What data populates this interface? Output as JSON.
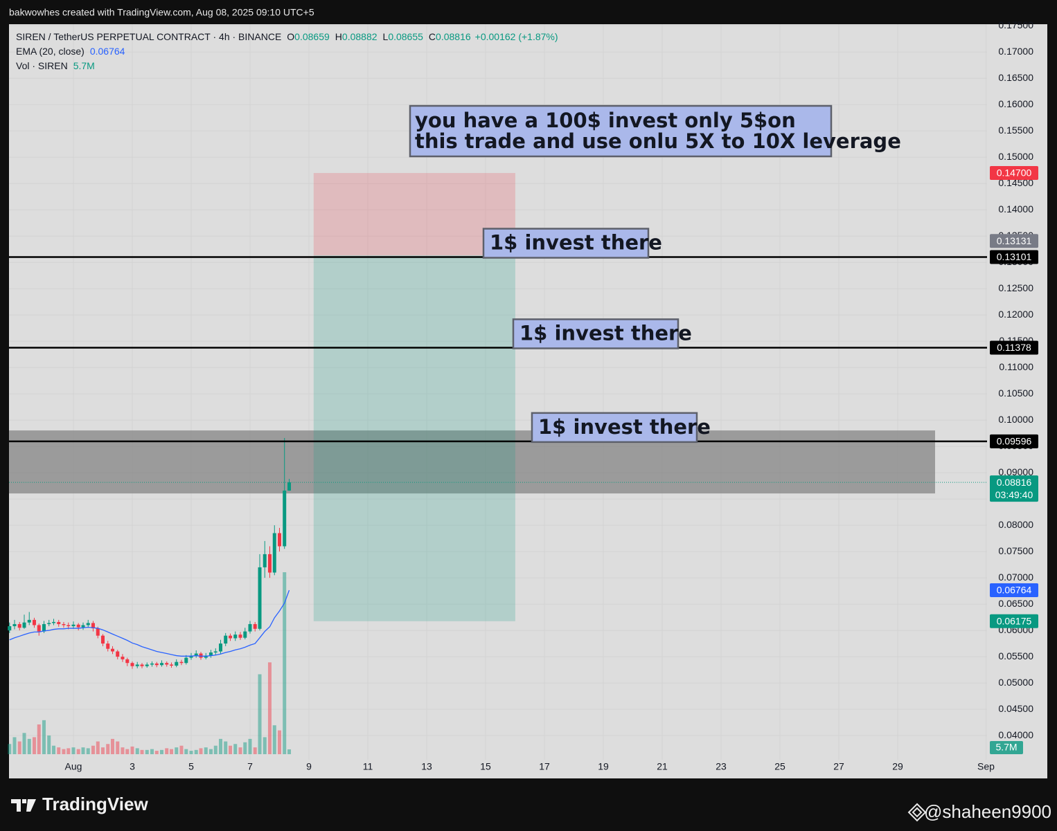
{
  "header": "bakwowhes created with TradingView.com, Aug 08, 2025 09:10 UTC+5",
  "chart_data": {
    "type": "candlestick",
    "symbol": "SIREN / TetherUS PERPETUAL CONTRACT · 4h · BINANCE",
    "legend": {
      "o_label": "O",
      "o": 0.08659,
      "h_label": "H",
      "h": 0.08882,
      "l_label": "L",
      "l": 0.08655,
      "c_label": "C",
      "c": 0.08816,
      "change": "+0.00162 (+1.87%)"
    },
    "up_color": "#089981",
    "down_color": "#f23645",
    "x": [
      -1.17,
      -1,
      -0.83,
      -0.67,
      -0.5,
      -0.33,
      -0.17,
      0,
      0.17,
      0.33,
      0.5,
      0.67,
      0.83,
      1,
      1.17,
      1.33,
      1.5,
      1.67,
      1.83,
      2,
      2.17,
      2.33,
      2.5,
      2.67,
      2.83,
      3,
      3.17,
      3.33,
      3.5,
      3.67,
      3.83,
      4,
      4.17,
      4.33,
      4.5,
      4.67,
      4.83,
      5,
      5.17,
      5.33,
      5.5,
      5.67,
      5.83,
      6,
      6.17,
      6.33,
      6.5,
      6.67,
      6.83,
      7,
      7.17,
      7.33,
      7.5,
      7.67,
      7.83,
      8,
      8.17,
      8.33
    ],
    "open": [
      0.06,
      0.0608,
      0.0612,
      0.0605,
      0.0615,
      0.062,
      0.061,
      0.0598,
      0.0612,
      0.0614,
      0.0616,
      0.0612,
      0.061,
      0.0608,
      0.0611,
      0.0606,
      0.061,
      0.0614,
      0.0604,
      0.059,
      0.0575,
      0.0565,
      0.056,
      0.055,
      0.0545,
      0.0538,
      0.0532,
      0.0535,
      0.0532,
      0.0535,
      0.0537,
      0.0534,
      0.0538,
      0.0535,
      0.0533,
      0.054,
      0.0538,
      0.0548,
      0.0552,
      0.0556,
      0.0548,
      0.0552,
      0.0558,
      0.056,
      0.0575,
      0.059,
      0.0585,
      0.0592,
      0.0586,
      0.0598,
      0.0612,
      0.0603,
      0.072,
      0.0745,
      0.071,
      0.0785,
      0.076,
      0.08659
    ],
    "high": [
      0.0615,
      0.062,
      0.0616,
      0.063,
      0.0635,
      0.0624,
      0.0613,
      0.0618,
      0.062,
      0.0622,
      0.062,
      0.0616,
      0.0615,
      0.0617,
      0.0614,
      0.0615,
      0.062,
      0.0618,
      0.0607,
      0.0593,
      0.058,
      0.057,
      0.0563,
      0.0555,
      0.0548,
      0.0541,
      0.054,
      0.0538,
      0.0539,
      0.0541,
      0.054,
      0.0543,
      0.0541,
      0.0539,
      0.0545,
      0.0544,
      0.0553,
      0.0557,
      0.0562,
      0.0559,
      0.0557,
      0.0563,
      0.0566,
      0.0582,
      0.0595,
      0.0594,
      0.0598,
      0.0597,
      0.0605,
      0.0618,
      0.0616,
      0.0745,
      0.077,
      0.076,
      0.08,
      0.0795,
      0.0966,
      0.08882
    ],
    "low": [
      0.0595,
      0.0602,
      0.06,
      0.0603,
      0.061,
      0.0605,
      0.059,
      0.0595,
      0.0608,
      0.061,
      0.0607,
      0.0605,
      0.0602,
      0.0603,
      0.06,
      0.0601,
      0.0605,
      0.0598,
      0.0585,
      0.057,
      0.056,
      0.0555,
      0.0545,
      0.054,
      0.0532,
      0.0527,
      0.0528,
      0.0528,
      0.0529,
      0.0531,
      0.053,
      0.0531,
      0.0531,
      0.0529,
      0.053,
      0.0534,
      0.0535,
      0.0544,
      0.0548,
      0.0544,
      0.0545,
      0.0548,
      0.0553,
      0.0556,
      0.057,
      0.058,
      0.058,
      0.0582,
      0.0583,
      0.0594,
      0.0598,
      0.06,
      0.07,
      0.07,
      0.0705,
      0.075,
      0.0755,
      0.08655
    ],
    "close": [
      0.0608,
      0.0612,
      0.0605,
      0.0615,
      0.062,
      0.061,
      0.0598,
      0.0612,
      0.0614,
      0.0616,
      0.0612,
      0.061,
      0.0608,
      0.0611,
      0.0606,
      0.061,
      0.0614,
      0.0604,
      0.059,
      0.0575,
      0.0565,
      0.056,
      0.055,
      0.0545,
      0.0538,
      0.0532,
      0.0535,
      0.0532,
      0.0535,
      0.0537,
      0.0534,
      0.0538,
      0.0535,
      0.0533,
      0.054,
      0.0538,
      0.0548,
      0.0552,
      0.0556,
      0.0548,
      0.0552,
      0.0558,
      0.056,
      0.0575,
      0.059,
      0.0585,
      0.0592,
      0.0586,
      0.0598,
      0.0612,
      0.0603,
      0.072,
      0.0745,
      0.071,
      0.0785,
      0.076,
      0.08659,
      0.08816
    ],
    "ema": {
      "name": "EMA (20, close)",
      "color": "#2962ff",
      "last": 0.06764,
      "values": [
        0.0582,
        0.0586,
        0.0589,
        0.0592,
        0.0595,
        0.0597,
        0.0597,
        0.0599,
        0.06,
        0.0602,
        0.0603,
        0.0603,
        0.0604,
        0.0604,
        0.0604,
        0.0605,
        0.0606,
        0.0605,
        0.0604,
        0.0601,
        0.0597,
        0.0593,
        0.0589,
        0.0585,
        0.0581,
        0.0576,
        0.0573,
        0.0569,
        0.0566,
        0.0563,
        0.056,
        0.0558,
        0.0556,
        0.0554,
        0.0552,
        0.0551,
        0.0551,
        0.0551,
        0.0552,
        0.0551,
        0.0551,
        0.0552,
        0.0553,
        0.0555,
        0.0558,
        0.056,
        0.0563,
        0.0565,
        0.0568,
        0.0572,
        0.0575,
        0.0586,
        0.0598,
        0.0607,
        0.0624,
        0.0637,
        0.0652,
        0.06764
      ]
    },
    "volume": {
      "name": "Vol · SIREN",
      "last_label": "5.7M",
      "values": [
        12,
        20,
        15,
        25,
        18,
        20,
        35,
        40,
        22,
        10,
        8,
        6,
        7,
        8,
        6,
        8,
        7,
        10,
        15,
        8,
        12,
        18,
        15,
        8,
        6,
        9,
        7,
        5,
        5,
        6,
        4,
        5,
        7,
        6,
        8,
        10,
        6,
        4,
        5,
        7,
        8,
        6,
        10,
        18,
        15,
        10,
        12,
        8,
        14,
        18,
        8,
        94,
        20,
        108,
        34,
        28,
        214,
        5.7
      ]
    },
    "xlim": [
      -1.188,
      32.035
    ],
    "xticks": [
      {
        "value": 1,
        "label": "Aug"
      },
      3,
      5,
      7,
      9,
      11,
      13,
      15,
      17,
      19,
      21,
      23,
      25,
      27,
      29,
      {
        "value": 32,
        "label": "Sep"
      }
    ],
    "ylim": [
      0.0354,
      0.1753
    ],
    "yticks": [
      {
        "value": 0.04,
        "label": "0.04000"
      },
      {
        "value": 0.045,
        "label": "0.04500"
      },
      {
        "value": 0.05,
        "label": "0.05000"
      },
      {
        "value": 0.055,
        "label": "0.05500"
      },
      {
        "value": 0.06,
        "label": "0.06000"
      },
      {
        "value": 0.065,
        "label": "0.06500"
      },
      {
        "value": 0.07,
        "label": "0.07000"
      },
      {
        "value": 0.075,
        "label": "0.07500"
      },
      {
        "value": 0.08,
        "label": "0.08000"
      },
      {
        "value": 0.085,
        "label": "0.08500"
      },
      {
        "value": 0.09,
        "label": "0.09000"
      },
      {
        "value": 0.095,
        "label": "0.09500"
      },
      {
        "value": 0.1,
        "label": "0.10000"
      },
      {
        "value": 0.105,
        "label": "0.10500"
      },
      {
        "value": 0.11,
        "label": "0.11000"
      },
      {
        "value": 0.115,
        "label": "0.11500"
      },
      {
        "value": 0.12,
        "label": "0.12000"
      },
      {
        "value": 0.125,
        "label": "0.12500"
      },
      {
        "value": 0.13,
        "label": "0.13000"
      },
      {
        "value": 0.135,
        "label": "0.13500"
      },
      {
        "value": 0.14,
        "label": "0.14000"
      },
      {
        "value": 0.145,
        "label": "0.14500"
      },
      {
        "value": 0.15,
        "label": "0.15000"
      },
      {
        "value": 0.155,
        "label": "0.15500"
      },
      {
        "value": 0.16,
        "label": "0.16000"
      },
      {
        "value": 0.165,
        "label": "0.16500"
      },
      {
        "value": 0.17,
        "label": "0.17000"
      },
      {
        "value": 0.175,
        "label": "0.17500"
      }
    ],
    "grid": true,
    "hlines": [
      {
        "value": 0.13101,
        "annotation": "1$ invest there"
      },
      {
        "value": 0.11378,
        "annotation": "1$ invest there"
      },
      {
        "value": 0.09596,
        "annotation": "1$ invest there"
      }
    ],
    "position": {
      "stop": {
        "value": 0.147,
        "label": "0.14700"
      },
      "entry": 0.13131,
      "target": 0.06175,
      "x": [
        9.16,
        16.01
      ]
    },
    "zone": {
      "y": [
        0.08605,
        0.09803
      ],
      "x": [
        -1.188,
        30.27
      ]
    },
    "last_price": {
      "value": 0.08816,
      "countdown": "03:49:40"
    },
    "note": [
      "you have a 100$ invest only 5$on",
      "this trade and use onlu 5X to 10X leverage"
    ]
  },
  "footer": {
    "logo": "TradingView",
    "author": "@shaheen9900"
  }
}
